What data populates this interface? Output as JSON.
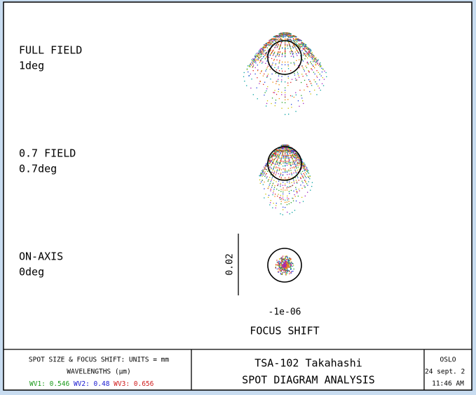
{
  "fields": [
    {
      "label": "FULL FIELD",
      "angle": "1deg"
    },
    {
      "label": "0.7 FIELD",
      "angle": "0.7deg"
    },
    {
      "label": "ON-AXIS",
      "angle": "0deg"
    }
  ],
  "scale_label": "0.02",
  "focus_shift_value": "-1e-06",
  "focus_shift_title": "FOCUS SHIFT",
  "footer": {
    "units": "SPOT SIZE & FOCUS SHIFT: UNITS = mm",
    "wavelengths_title": "WAVELENGTHS (μm)",
    "wavelengths": [
      "WV1: 0.546",
      "WV2: 0.48",
      "WV3: 0.656"
    ],
    "lens": "TSA-102 Takahashi",
    "analysis": "SPOT DIAGRAM ANALYSIS",
    "program": "OSLO",
    "date": "24 sept. 2",
    "time": "11:46 AM"
  }
}
